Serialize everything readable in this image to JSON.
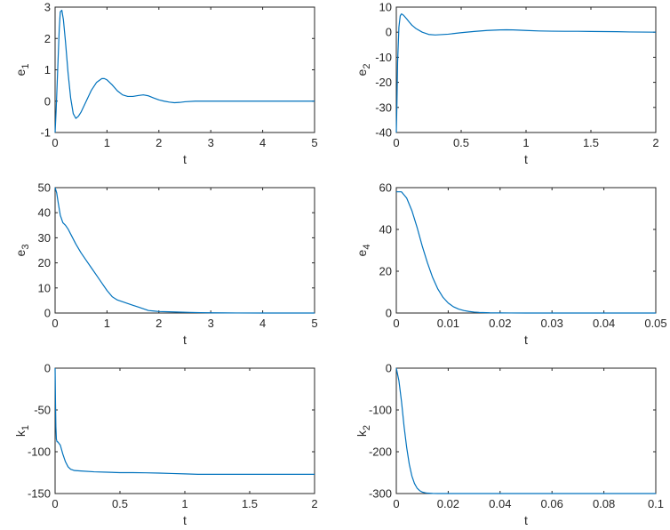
{
  "figure": {
    "line_color": "#0072BD",
    "axes_color": "#262626",
    "background": "#ffffff"
  },
  "chart_data": [
    {
      "type": "line",
      "id": "e1",
      "xlabel": "t",
      "ylabel": "e",
      "ylabel_sub": "1",
      "xlim": [
        0,
        5
      ],
      "ylim": [
        -1,
        3
      ],
      "xticks": [
        0,
        1,
        2,
        3,
        4,
        5
      ],
      "xtick_labels": [
        "0",
        "1",
        "2",
        "3",
        "4",
        "5"
      ],
      "yticks": [
        -1,
        0,
        1,
        2,
        3
      ],
      "ytick_labels": [
        "-1",
        "0",
        "1",
        "2",
        "3"
      ],
      "grid": false,
      "series": [
        {
          "x": [
            0,
            0.02,
            0.05,
            0.08,
            0.1,
            0.13,
            0.16,
            0.2,
            0.25,
            0.3,
            0.35,
            0.4,
            0.45,
            0.5,
            0.6,
            0.7,
            0.8,
            0.9,
            0.95,
            1.0,
            1.1,
            1.2,
            1.3,
            1.4,
            1.5,
            1.6,
            1.7,
            1.8,
            1.9,
            2.0,
            2.1,
            2.2,
            2.3,
            2.4,
            2.5,
            2.7,
            3.0,
            3.5,
            4.0,
            4.5,
            5.0
          ],
          "y": [
            -1.0,
            -0.3,
            1.0,
            2.3,
            2.85,
            2.9,
            2.6,
            1.9,
            0.9,
            0.1,
            -0.4,
            -0.55,
            -0.48,
            -0.35,
            0.0,
            0.35,
            0.6,
            0.72,
            0.72,
            0.68,
            0.52,
            0.33,
            0.2,
            0.15,
            0.15,
            0.18,
            0.2,
            0.17,
            0.1,
            0.04,
            0.0,
            -0.03,
            -0.05,
            -0.04,
            -0.02,
            0.0,
            0.0,
            0.0,
            0.0,
            0.0,
            0.0
          ]
        }
      ]
    },
    {
      "type": "line",
      "id": "e2",
      "xlabel": "t",
      "ylabel": "e",
      "ylabel_sub": "2",
      "xlim": [
        0,
        2
      ],
      "ylim": [
        -40,
        10
      ],
      "xticks": [
        0,
        0.5,
        1,
        1.5,
        2
      ],
      "xtick_labels": [
        "0",
        "0.5",
        "1",
        "1.5",
        "2"
      ],
      "yticks": [
        -40,
        -30,
        -20,
        -10,
        0,
        10
      ],
      "ytick_labels": [
        "-40",
        "-30",
        "-20",
        "-10",
        "0",
        "10"
      ],
      "grid": false,
      "series": [
        {
          "x": [
            0,
            0.005,
            0.01,
            0.02,
            0.03,
            0.04,
            0.05,
            0.06,
            0.08,
            0.1,
            0.12,
            0.15,
            0.2,
            0.25,
            0.3,
            0.4,
            0.5,
            0.6,
            0.7,
            0.8,
            0.85,
            0.9,
            1.0,
            1.1,
            1.2,
            1.3,
            1.4,
            1.5,
            1.6,
            1.7,
            1.8,
            1.9,
            2.0
          ],
          "y": [
            -40,
            -28,
            -12,
            2,
            6.5,
            7.3,
            7.0,
            6.5,
            5.3,
            4.0,
            2.8,
            1.5,
            0.0,
            -0.9,
            -1.1,
            -0.8,
            -0.2,
            0.3,
            0.7,
            0.9,
            0.95,
            0.9,
            0.7,
            0.5,
            0.4,
            0.35,
            0.35,
            0.3,
            0.25,
            0.2,
            0.1,
            0.05,
            0.0
          ]
        }
      ]
    },
    {
      "type": "line",
      "id": "e3",
      "xlabel": "t",
      "ylabel": "e",
      "ylabel_sub": "3",
      "xlim": [
        0,
        5
      ],
      "ylim": [
        0,
        50
      ],
      "xticks": [
        0,
        1,
        2,
        3,
        4,
        5
      ],
      "xtick_labels": [
        "0",
        "1",
        "2",
        "3",
        "4",
        "5"
      ],
      "yticks": [
        0,
        10,
        20,
        30,
        40,
        50
      ],
      "ytick_labels": [
        "0",
        "10",
        "20",
        "30",
        "40",
        "50"
      ],
      "grid": false,
      "series": [
        {
          "x": [
            0,
            0.03,
            0.06,
            0.1,
            0.15,
            0.2,
            0.25,
            0.3,
            0.4,
            0.5,
            0.6,
            0.7,
            0.8,
            0.9,
            1.0,
            1.1,
            1.2,
            1.3,
            1.4,
            1.5,
            1.6,
            1.7,
            1.8,
            1.9,
            2.0,
            2.2,
            2.4,
            2.6,
            2.8,
            3.0,
            3.5,
            4.0,
            4.5,
            5.0
          ],
          "y": [
            50,
            48,
            44,
            39,
            36,
            35,
            33.5,
            31.5,
            27.5,
            24,
            21,
            18,
            15,
            12,
            9,
            6.5,
            5.2,
            4.5,
            3.8,
            3.1,
            2.4,
            1.7,
            1.0,
            0.8,
            0.6,
            0.5,
            0.35,
            0.25,
            0.15,
            0.08,
            0.02,
            0.0,
            0.0,
            0.0
          ]
        }
      ]
    },
    {
      "type": "line",
      "id": "e4",
      "xlabel": "t",
      "ylabel": "e",
      "ylabel_sub": "4",
      "xlim": [
        0,
        0.05
      ],
      "ylim": [
        0,
        60
      ],
      "xticks": [
        0,
        0.01,
        0.02,
        0.03,
        0.04,
        0.05
      ],
      "xtick_labels": [
        "0",
        "0.01",
        "0.02",
        "0.03",
        "0.04",
        "0.05"
      ],
      "yticks": [
        0,
        20,
        40,
        60
      ],
      "ytick_labels": [
        "0",
        "20",
        "40",
        "60"
      ],
      "grid": false,
      "series": [
        {
          "x": [
            0,
            0.001,
            0.002,
            0.003,
            0.004,
            0.005,
            0.006,
            0.007,
            0.008,
            0.009,
            0.01,
            0.011,
            0.012,
            0.013,
            0.014,
            0.015,
            0.016,
            0.018,
            0.02,
            0.022,
            0.025,
            0.03,
            0.035,
            0.04,
            0.045,
            0.05
          ],
          "y": [
            58,
            58,
            55,
            49,
            41,
            32,
            24,
            17,
            11.5,
            7.5,
            4.8,
            3.0,
            1.9,
            1.2,
            0.75,
            0.45,
            0.28,
            0.11,
            0.05,
            0.02,
            0.0,
            0.0,
            0.0,
            0.0,
            0.0,
            0.0
          ]
        }
      ]
    },
    {
      "type": "line",
      "id": "k1",
      "xlabel": "t",
      "ylabel": "k",
      "ylabel_sub": "1",
      "xlim": [
        0,
        2
      ],
      "ylim": [
        -150,
        0
      ],
      "xticks": [
        0,
        0.5,
        1,
        1.5,
        2
      ],
      "xtick_labels": [
        "0",
        "0.5",
        "1",
        "1.5",
        "2"
      ],
      "yticks": [
        -150,
        -100,
        -50,
        0
      ],
      "ytick_labels": [
        "-150",
        "-100",
        "-50",
        "0"
      ],
      "grid": false,
      "series": [
        {
          "x": [
            0,
            0.003,
            0.006,
            0.01,
            0.015,
            0.02,
            0.04,
            0.06,
            0.08,
            0.1,
            0.12,
            0.15,
            0.2,
            0.3,
            0.4,
            0.5,
            0.6,
            0.7,
            0.8,
            0.9,
            1.0,
            1.1,
            1.2,
            1.3,
            1.4,
            1.5,
            1.6,
            1.7,
            1.8,
            1.9,
            2.0
          ],
          "y": [
            0,
            -40,
            -70,
            -85,
            -88,
            -88,
            -92,
            -103,
            -112,
            -118,
            -121,
            -122.5,
            -123,
            -124,
            -124.5,
            -125,
            -125,
            -125.2,
            -125.5,
            -126,
            -126.5,
            -127,
            -127,
            -127,
            -127,
            -127,
            -127,
            -127,
            -127,
            -127,
            -127
          ]
        }
      ]
    },
    {
      "type": "line",
      "id": "k2",
      "xlabel": "t",
      "ylabel": "k",
      "ylabel_sub": "2",
      "xlim": [
        0,
        0.1
      ],
      "ylim": [
        -300,
        0
      ],
      "xticks": [
        0,
        0.02,
        0.04,
        0.06,
        0.08,
        0.1
      ],
      "xtick_labels": [
        "0",
        "0.02",
        "0.04",
        "0.06",
        "0.08",
        "0.1"
      ],
      "yticks": [
        -300,
        -200,
        -100,
        0
      ],
      "ytick_labels": [
        "-300",
        "-200",
        "-100",
        "0"
      ],
      "grid": false,
      "series": [
        {
          "x": [
            0,
            0.001,
            0.002,
            0.003,
            0.004,
            0.005,
            0.006,
            0.007,
            0.008,
            0.009,
            0.01,
            0.011,
            0.012,
            0.014,
            0.016,
            0.02,
            0.03,
            0.04,
            0.05,
            0.06,
            0.07,
            0.08,
            0.09,
            0.1
          ],
          "y": [
            0,
            -30,
            -80,
            -140,
            -190,
            -230,
            -258,
            -276,
            -287,
            -293,
            -296.5,
            -298,
            -299,
            -299.7,
            -300,
            -300,
            -300,
            -300,
            -300,
            -300,
            -300,
            -300,
            -300,
            -300
          ]
        }
      ]
    }
  ]
}
